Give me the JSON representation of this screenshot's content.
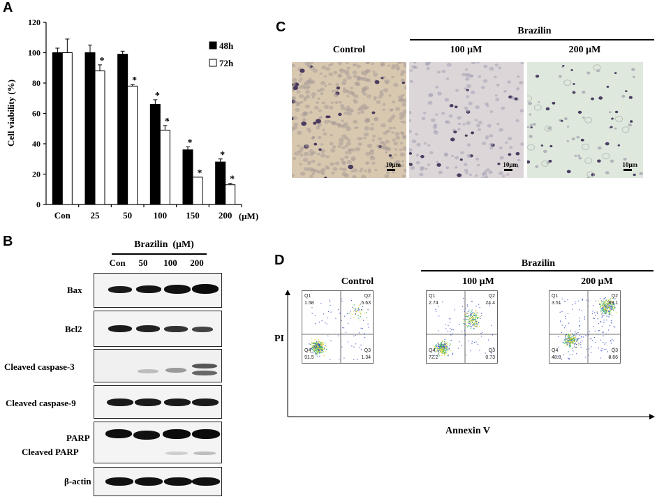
{
  "panels": {
    "a": "A",
    "b": "B",
    "c": "C",
    "d": "D"
  },
  "chart_data": {
    "type": "bar",
    "categories": [
      "Con",
      "25",
      "50",
      "100",
      "150",
      "200"
    ],
    "x_unit": "(μM)",
    "ylabel": "Cell viability (%)",
    "xlabel": "",
    "ylim": [
      0,
      120
    ],
    "yticks": [
      "0",
      "20",
      "40",
      "60",
      "80",
      "100",
      "120"
    ],
    "series": [
      {
        "name": "48h",
        "values": [
          100,
          100,
          99,
          66,
          36,
          28
        ],
        "errors": [
          3,
          5,
          2,
          3,
          2,
          2
        ],
        "fill": "#000000",
        "sig": [
          false,
          false,
          false,
          true,
          true,
          true
        ]
      },
      {
        "name": "72h",
        "values": [
          100,
          88,
          78,
          49,
          18,
          13
        ],
        "errors": [
          9,
          4,
          1,
          3,
          0,
          1
        ],
        "fill": "#ffffff",
        "sig": [
          false,
          true,
          true,
          true,
          true,
          true
        ]
      }
    ],
    "sig_marker": "*",
    "legend_position": "top-right",
    "grid": false
  },
  "panel_c": {
    "header": "Brazilin",
    "columns": [
      "Control",
      "100 μM",
      "200 μM"
    ],
    "scale_bar": "10μm"
  },
  "panel_b": {
    "header": "Brazilin  (μM)",
    "lanes": [
      "Con",
      "50",
      "100",
      "200"
    ],
    "proteins": [
      "Bax",
      "Bcl2",
      "Cleaved caspase-3",
      "Cleaved caspase-9",
      "PARP",
      "Cleaved PARP",
      "β-actin"
    ]
  },
  "panel_d": {
    "header": "Brazilin",
    "columns": [
      "Control",
      "100 μM",
      "200 μM"
    ],
    "ylabel": "PI",
    "xlabel": "Annexin V",
    "quadrants": [
      {
        "Q1": "Q1",
        "Q2": "Q2",
        "Q3": "Q3",
        "Q4": "Q4",
        "q1": "1.58",
        "q2": "5.63",
        "q3": "1.34",
        "q4": "91.5"
      },
      {
        "Q1": "Q1",
        "Q2": "Q2",
        "Q3": "Q3",
        "Q4": "Q4",
        "q1": "2.74",
        "q2": "24.4",
        "q3": "0.73",
        "q4": "72.2"
      },
      {
        "Q1": "Q1",
        "Q2": "Q2",
        "Q3": "Q3",
        "Q4": "Q4",
        "q1": "3.51",
        "q2": "39.1",
        "q3": "8.66",
        "q4": "48.8"
      }
    ]
  }
}
